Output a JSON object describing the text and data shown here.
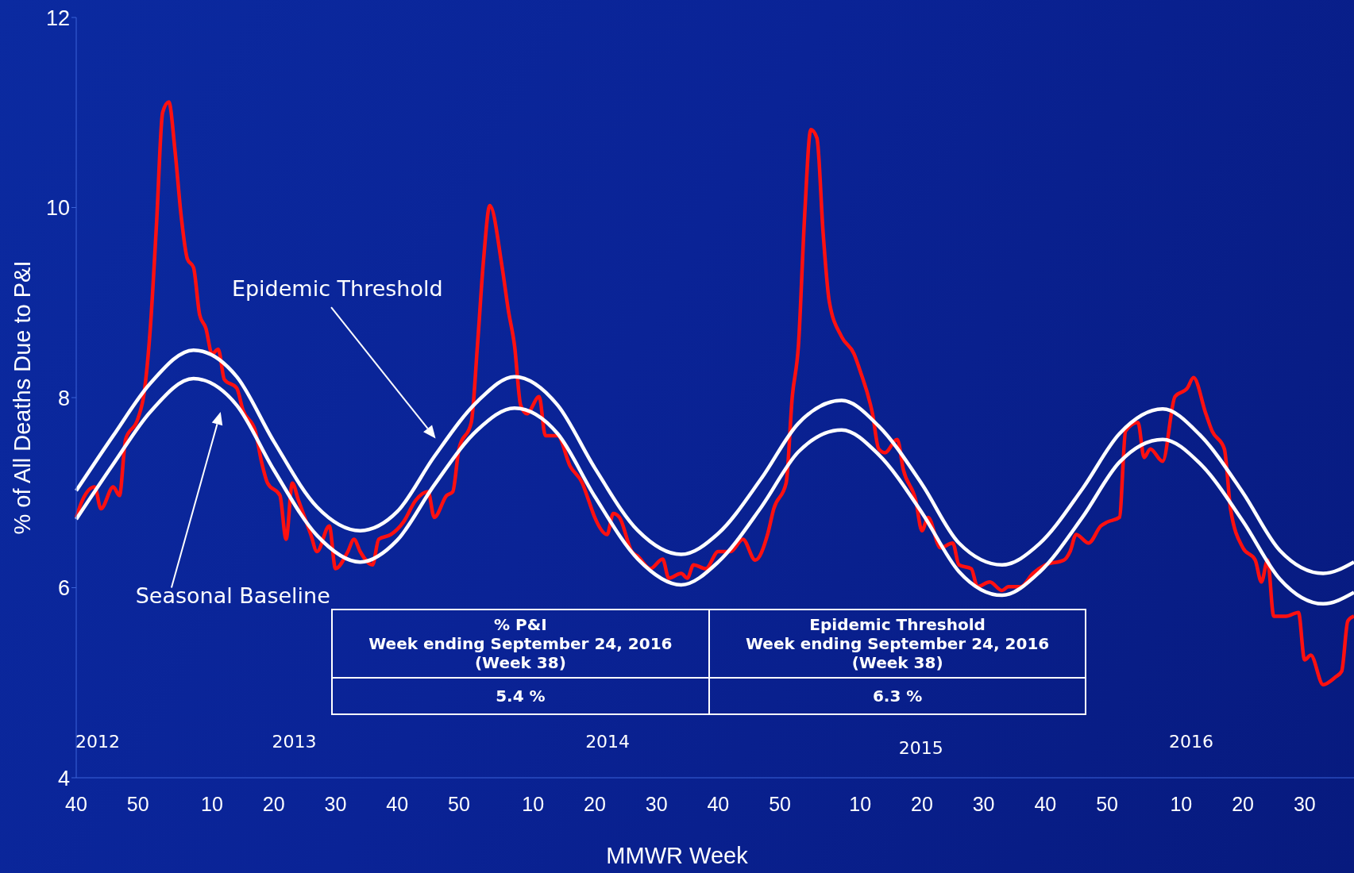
{
  "chart_data": {
    "type": "line",
    "xlabel": "MMWR Week",
    "ylabel": "% of All Deaths Due to P&I",
    "categories": [
      "40",
      null,
      null,
      null,
      null,
      null,
      null,
      null,
      null,
      null,
      "50",
      null,
      null,
      null,
      null,
      null,
      null,
      null,
      null,
      null,
      null,
      null,
      "10",
      null,
      null,
      null,
      null,
      null,
      null,
      null,
      null,
      null,
      "20",
      null,
      null,
      null,
      null,
      null,
      null,
      null,
      null,
      null,
      "30",
      null,
      null,
      null,
      null,
      null,
      null,
      null,
      null,
      null,
      "40",
      null,
      null,
      null,
      null,
      null,
      null,
      null,
      null,
      null,
      "50",
      null,
      null,
      null,
      null,
      null,
      null,
      null,
      null,
      null,
      null,
      null,
      "10",
      null,
      null,
      null,
      null,
      null,
      null,
      null,
      null,
      null,
      "20",
      null,
      null,
      null,
      null,
      null,
      null,
      null,
      null,
      null,
      "30",
      null,
      null,
      null,
      null,
      null,
      null,
      null,
      null,
      null,
      "40",
      null,
      null,
      null,
      null,
      null,
      null,
      null,
      null,
      null,
      "50",
      null,
      null,
      null,
      null,
      null,
      null,
      null,
      null,
      null,
      null,
      null,
      null,
      "10",
      null,
      null,
      null,
      null,
      null,
      null,
      null,
      null,
      null,
      "20",
      null,
      null,
      null,
      null,
      null,
      null,
      null,
      null,
      null,
      "30",
      null,
      null,
      null,
      null,
      null,
      null,
      null,
      null,
      null,
      "40",
      null,
      null,
      null,
      null,
      null,
      null,
      null,
      null,
      null,
      "50",
      null,
      null,
      null,
      null,
      null,
      null,
      null,
      null,
      null,
      null,
      null,
      "10",
      null,
      null,
      null,
      null,
      null,
      null,
      null,
      null,
      null,
      "20",
      null,
      null,
      null,
      null,
      null,
      null,
      null,
      null,
      null,
      "30",
      null,
      null,
      null,
      null,
      null,
      null,
      null,
      null
    ],
    "ylim": [
      4,
      12
    ],
    "yticks": [
      4,
      6,
      8,
      10,
      12
    ],
    "series": [
      {
        "color": "#ff1010",
        "values": [
          6.74,
          6.92,
          null,
          7.06,
          6.83,
          null,
          7.06,
          6.97,
          7.56,
          null,
          7.78,
          8.05,
          8.73,
          9.82,
          11.0,
          11.11,
          10.6,
          9.91,
          9.46,
          9.37,
          8.87,
          8.73,
          8.46,
          8.51,
          8.19,
          null,
          8.1,
          7.87,
          null,
          7.65,
          7.33,
          7.1,
          null,
          6.97,
          6.51,
          7.1,
          6.92,
          null,
          6.56,
          6.38,
          null,
          6.65,
          6.2,
          null,
          6.38,
          6.51,
          6.38,
          null,
          6.24,
          6.51,
          null,
          6.56,
          null,
          6.69,
          null,
          6.92,
          null,
          7.01,
          6.74,
          null,
          6.97,
          7.01,
          7.46,
          null,
          7.74,
          8.55,
          9.46,
          10.02,
          null,
          9.37,
          8.92,
          8.55,
          7.92,
          7.83,
          null,
          8.01,
          7.6,
          null,
          7.6,
          null,
          7.28,
          null,
          7.1,
          6.92,
          6.74,
          null,
          6.56,
          6.78,
          6.74,
          null,
          6.38,
          6.33,
          null,
          6.2,
          null,
          6.3,
          6.1,
          null,
          6.15,
          6.1,
          6.24,
          null,
          6.2,
          null,
          6.38,
          null,
          6.38,
          null,
          6.51,
          null,
          6.29,
          null,
          6.56,
          6.83,
          null,
          7.1,
          8.01,
          8.55,
          9.91,
          10.82,
          10.73,
          9.73,
          9.01,
          null,
          8.64,
          null,
          8.46,
          8.28,
          null,
          7.83,
          7.46,
          7.42,
          null,
          7.56,
          7.24,
          null,
          6.92,
          6.6,
          6.74,
          null,
          6.42,
          null,
          6.47,
          6.24,
          null,
          6.2,
          6.01,
          null,
          6.06,
          null,
          5.97,
          6.01,
          null,
          6.01,
          null,
          6.15,
          null,
          6.24,
          null,
          null,
          6.29,
          6.38,
          6.56,
          null,
          6.47,
          null,
          6.65,
          6.69,
          null,
          6.74,
          7.65,
          null,
          7.74,
          7.37,
          7.46,
          null,
          7.33,
          null,
          8.01,
          null,
          8.1,
          8.21,
          null,
          7.83,
          7.65,
          null,
          7.46,
          6.83,
          null,
          6.42,
          null,
          6.29,
          6.06,
          6.29,
          5.7,
          null,
          5.7,
          null,
          5.74,
          5.24,
          5.29,
          null,
          4.98,
          null,
          5.06,
          5.12,
          5.65,
          5.7
        ]
      },
      {
        "color": "#ffffff",
        "values": [
          7.02,
          null,
          null,
          null,
          null,
          null,
          7.6,
          null,
          null,
          null,
          null,
          null,
          8.15,
          null,
          null,
          null,
          null,
          null,
          null,
          8.5,
          null,
          null,
          null,
          null,
          null,
          null,
          8.22,
          null,
          null,
          null,
          null,
          null,
          7.54,
          null,
          null,
          null,
          null,
          null,
          null,
          6.85,
          null,
          null,
          null,
          null,
          null,
          null,
          6.6,
          null,
          null,
          null,
          null,
          null,
          6.8,
          null,
          null,
          null,
          null,
          null,
          7.38,
          null,
          null,
          null,
          null,
          null,
          null,
          7.96,
          null,
          null,
          null,
          null,
          null,
          8.22,
          null,
          null,
          null,
          null,
          null,
          null,
          7.92,
          null,
          null,
          null,
          null,
          null,
          7.26,
          null,
          null,
          null,
          null,
          null,
          null,
          6.6,
          null,
          null,
          null,
          null,
          null,
          null,
          6.35,
          null,
          null,
          null,
          null,
          null,
          6.57,
          null,
          null,
          null,
          null,
          null,
          null,
          7.15,
          null,
          null,
          null,
          null,
          null,
          7.73,
          null,
          null,
          null,
          null,
          null,
          null,
          7.97,
          null,
          null,
          null,
          null,
          null,
          7.7,
          null,
          null,
          null,
          null,
          null,
          null,
          7.09,
          null,
          null,
          null,
          null,
          null,
          6.47,
          null,
          null,
          null,
          null,
          null,
          null,
          6.24,
          null,
          null,
          null,
          null,
          null,
          6.46,
          null,
          null,
          null,
          null,
          null,
          null,
          7.04,
          null,
          null,
          null,
          null,
          null,
          7.62,
          null,
          null,
          null,
          null,
          null,
          null,
          7.88,
          null,
          null,
          null,
          null,
          null,
          7.61,
          null,
          null,
          null,
          null,
          null,
          null,
          7.0,
          null,
          null,
          null,
          null,
          null,
          6.39,
          null,
          null,
          null,
          null,
          null,
          null,
          6.15,
          null,
          null,
          null,
          null,
          6.27
        ]
      },
      {
        "color": "#ffffff",
        "values": [
          6.72,
          null,
          null,
          null,
          null,
          null,
          7.3,
          null,
          null,
          null,
          null,
          null,
          7.85,
          null,
          null,
          null,
          null,
          null,
          null,
          8.2,
          null,
          null,
          null,
          null,
          null,
          null,
          7.92,
          null,
          null,
          null,
          null,
          null,
          7.24,
          null,
          null,
          null,
          null,
          null,
          null,
          6.55,
          null,
          null,
          null,
          null,
          null,
          null,
          6.27,
          null,
          null,
          null,
          null,
          null,
          6.5,
          null,
          null,
          null,
          null,
          null,
          7.08,
          null,
          null,
          null,
          null,
          null,
          null,
          7.66,
          null,
          null,
          null,
          null,
          null,
          7.89,
          null,
          null,
          null,
          null,
          null,
          null,
          7.62,
          null,
          null,
          null,
          null,
          null,
          6.96,
          null,
          null,
          null,
          null,
          null,
          null,
          6.3,
          null,
          null,
          null,
          null,
          null,
          null,
          6.03,
          null,
          null,
          null,
          null,
          null,
          6.27,
          null,
          null,
          null,
          null,
          null,
          null,
          6.85,
          null,
          null,
          null,
          null,
          null,
          7.43,
          null,
          null,
          null,
          null,
          null,
          null,
          7.66,
          null,
          null,
          null,
          null,
          null,
          7.4,
          null,
          null,
          null,
          null,
          null,
          null,
          6.79,
          null,
          null,
          null,
          null,
          null,
          6.17,
          null,
          null,
          null,
          null,
          null,
          null,
          5.92,
          null,
          null,
          null,
          null,
          null,
          6.16,
          null,
          null,
          null,
          null,
          null,
          null,
          6.74,
          null,
          null,
          null,
          null,
          null,
          7.32,
          null,
          null,
          null,
          null,
          null,
          null,
          7.56,
          null,
          null,
          null,
          null,
          null,
          7.31,
          null,
          null,
          null,
          null,
          null,
          null,
          6.7,
          null,
          null,
          null,
          null,
          null,
          6.09,
          null,
          null,
          null,
          null,
          null,
          null,
          5.83,
          null,
          null,
          null,
          null,
          5.95
        ]
      }
    ],
    "annotations": [
      "2012",
      "2013",
      "2014",
      "2015",
      "2016",
      "Epidemic Threshold",
      "Seasonal Baseline",
      "% P&I",
      "Week ending  September 24, 2016 (Week 38)",
      "Epidemic Threshold",
      "Week ending  September 24, 2016 (Week 38)",
      "5.4 %",
      "6.3 %"
    ]
  }
}
